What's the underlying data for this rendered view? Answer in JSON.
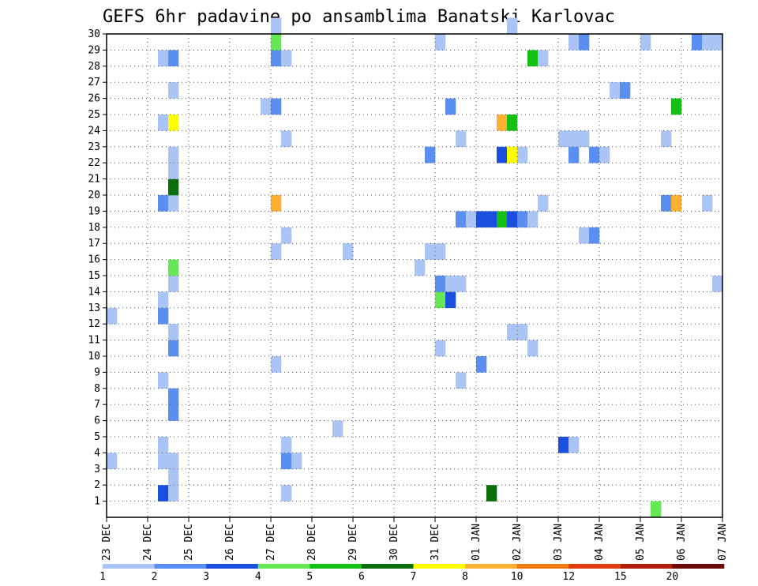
{
  "chart_data": {
    "type": "heatmap",
    "title": "GEFS 6hr padavine po ansamblima Banatski Karlovac",
    "xlabel": "",
    "ylabel": "",
    "x_ticks": [
      "23 DEC",
      "24 DEC",
      "25 DEC",
      "26 DEC",
      "27 DEC",
      "28 DEC",
      "29 DEC",
      "30 DEC",
      "31 DEC",
      "01 JAN",
      "02 JAN",
      "03 JAN",
      "04 JAN",
      "05 JAN",
      "06 JAN",
      "07 JAN"
    ],
    "x_unit": "6-hour step since 23 DEC 00UTC",
    "xlim": [
      0,
      60
    ],
    "y_ticks": [
      1,
      2,
      3,
      4,
      5,
      6,
      7,
      8,
      9,
      10,
      11,
      12,
      13,
      14,
      15,
      16,
      17,
      18,
      19,
      20,
      21,
      22,
      23,
      24,
      25,
      26,
      27,
      28,
      29,
      30
    ],
    "ylim": [
      0,
      30
    ],
    "grid": true,
    "colorbar": {
      "labels": [
        "1",
        "2",
        "3",
        "4",
        "5",
        "6",
        "7",
        "8",
        "10",
        "12",
        "15",
        "20"
      ],
      "colors": [
        "#a9c4f5",
        "#5a8ef0",
        "#1a4fe0",
        "#66e855",
        "#15c015",
        "#0a6e0a",
        "#ffff00",
        "#ffb030",
        "#f07a10",
        "#e03c10",
        "#b01e0a",
        "#6a0a0a"
      ]
    },
    "cells": [
      {
        "x": 0,
        "y": 3,
        "v": 1
      },
      {
        "x": 0,
        "y": 12,
        "v": 1
      },
      {
        "x": 5,
        "y": 1,
        "v": 3
      },
      {
        "x": 5,
        "y": 3,
        "v": 1
      },
      {
        "x": 5,
        "y": 4,
        "v": 1
      },
      {
        "x": 5,
        "y": 8,
        "v": 1
      },
      {
        "x": 5,
        "y": 12,
        "v": 2
      },
      {
        "x": 5,
        "y": 13,
        "v": 1
      },
      {
        "x": 5,
        "y": 19,
        "v": 2
      },
      {
        "x": 5,
        "y": 24,
        "v": 1
      },
      {
        "x": 5,
        "y": 28,
        "v": 1
      },
      {
        "x": 6,
        "y": 1,
        "v": 1
      },
      {
        "x": 6,
        "y": 2,
        "v": 1
      },
      {
        "x": 6,
        "y": 3,
        "v": 1
      },
      {
        "x": 6,
        "y": 6,
        "v": 2
      },
      {
        "x": 6,
        "y": 7,
        "v": 2
      },
      {
        "x": 6,
        "y": 10,
        "v": 2
      },
      {
        "x": 6,
        "y": 11,
        "v": 1
      },
      {
        "x": 6,
        "y": 14,
        "v": 1
      },
      {
        "x": 6,
        "y": 15,
        "v": 4
      },
      {
        "x": 6,
        "y": 19,
        "v": 1
      },
      {
        "x": 6,
        "y": 20,
        "v": 6
      },
      {
        "x": 6,
        "y": 21,
        "v": 1
      },
      {
        "x": 6,
        "y": 22,
        "v": 1
      },
      {
        "x": 6,
        "y": 24,
        "v": 7
      },
      {
        "x": 6,
        "y": 26,
        "v": 1
      },
      {
        "x": 6,
        "y": 28,
        "v": 2
      },
      {
        "x": 15,
        "y": 25,
        "v": 1
      },
      {
        "x": 16,
        "y": 9,
        "v": 1
      },
      {
        "x": 16,
        "y": 16,
        "v": 1
      },
      {
        "x": 16,
        "y": 19,
        "v": 8
      },
      {
        "x": 16,
        "y": 25,
        "v": 2
      },
      {
        "x": 16,
        "y": 28,
        "v": 2
      },
      {
        "x": 16,
        "y": 29,
        "v": 4
      },
      {
        "x": 16,
        "y": 30,
        "v": 1
      },
      {
        "x": 17,
        "y": 1,
        "v": 1
      },
      {
        "x": 17,
        "y": 3,
        "v": 2
      },
      {
        "x": 17,
        "y": 4,
        "v": 1
      },
      {
        "x": 17,
        "y": 17,
        "v": 1
      },
      {
        "x": 17,
        "y": 23,
        "v": 1
      },
      {
        "x": 17,
        "y": 28,
        "v": 1
      },
      {
        "x": 18,
        "y": 3,
        "v": 1
      },
      {
        "x": 22,
        "y": 5,
        "v": 1
      },
      {
        "x": 23,
        "y": 16,
        "v": 1
      },
      {
        "x": 30,
        "y": 15,
        "v": 1
      },
      {
        "x": 31,
        "y": 16,
        "v": 1
      },
      {
        "x": 31,
        "y": 22,
        "v": 2
      },
      {
        "x": 32,
        "y": 10,
        "v": 1
      },
      {
        "x": 32,
        "y": 13,
        "v": 4
      },
      {
        "x": 32,
        "y": 14,
        "v": 2
      },
      {
        "x": 32,
        "y": 16,
        "v": 1
      },
      {
        "x": 32,
        "y": 29,
        "v": 1
      },
      {
        "x": 33,
        "y": 13,
        "v": 3
      },
      {
        "x": 33,
        "y": 14,
        "v": 1
      },
      {
        "x": 33,
        "y": 25,
        "v": 2
      },
      {
        "x": 34,
        "y": 8,
        "v": 1
      },
      {
        "x": 34,
        "y": 14,
        "v": 1
      },
      {
        "x": 34,
        "y": 18,
        "v": 2
      },
      {
        "x": 34,
        "y": 23,
        "v": 1
      },
      {
        "x": 35,
        "y": 18,
        "v": 1
      },
      {
        "x": 36,
        "y": 9,
        "v": 2
      },
      {
        "x": 36,
        "y": 18,
        "v": 3
      },
      {
        "x": 37,
        "y": 1,
        "v": 6
      },
      {
        "x": 37,
        "y": 18,
        "v": 3
      },
      {
        "x": 38,
        "y": 18,
        "v": 5
      },
      {
        "x": 38,
        "y": 22,
        "v": 3
      },
      {
        "x": 38,
        "y": 24,
        "v": 8
      },
      {
        "x": 39,
        "y": 11,
        "v": 1
      },
      {
        "x": 39,
        "y": 18,
        "v": 3
      },
      {
        "x": 39,
        "y": 22,
        "v": 7
      },
      {
        "x": 39,
        "y": 24,
        "v": 5
      },
      {
        "x": 39,
        "y": 30,
        "v": 1
      },
      {
        "x": 40,
        "y": 11,
        "v": 1
      },
      {
        "x": 40,
        "y": 18,
        "v": 2
      },
      {
        "x": 40,
        "y": 22,
        "v": 1
      },
      {
        "x": 41,
        "y": 10,
        "v": 1
      },
      {
        "x": 41,
        "y": 18,
        "v": 1
      },
      {
        "x": 41,
        "y": 28,
        "v": 5
      },
      {
        "x": 42,
        "y": 19,
        "v": 1
      },
      {
        "x": 42,
        "y": 28,
        "v": 1
      },
      {
        "x": 44,
        "y": 4,
        "v": 3
      },
      {
        "x": 44,
        "y": 23,
        "v": 1
      },
      {
        "x": 45,
        "y": 4,
        "v": 1
      },
      {
        "x": 45,
        "y": 22,
        "v": 2
      },
      {
        "x": 45,
        "y": 23,
        "v": 1
      },
      {
        "x": 45,
        "y": 29,
        "v": 1
      },
      {
        "x": 46,
        "y": 17,
        "v": 1
      },
      {
        "x": 46,
        "y": 23,
        "v": 1
      },
      {
        "x": 46,
        "y": 29,
        "v": 2
      },
      {
        "x": 47,
        "y": 17,
        "v": 2
      },
      {
        "x": 47,
        "y": 22,
        "v": 2
      },
      {
        "x": 48,
        "y": 22,
        "v": 1
      },
      {
        "x": 49,
        "y": 26,
        "v": 1
      },
      {
        "x": 50,
        "y": 26,
        "v": 2
      },
      {
        "x": 52,
        "y": 29,
        "v": 1
      },
      {
        "x": 53,
        "y": 0,
        "v": 4
      },
      {
        "x": 54,
        "y": 19,
        "v": 2
      },
      {
        "x": 54,
        "y": 23,
        "v": 1
      },
      {
        "x": 55,
        "y": 19,
        "v": 8
      },
      {
        "x": 55,
        "y": 25,
        "v": 5
      },
      {
        "x": 57,
        "y": 29,
        "v": 2
      },
      {
        "x": 58,
        "y": 19,
        "v": 1
      },
      {
        "x": 58,
        "y": 29,
        "v": 1
      },
      {
        "x": 59,
        "y": 14,
        "v": 1
      },
      {
        "x": 59,
        "y": 29,
        "v": 1
      }
    ]
  }
}
